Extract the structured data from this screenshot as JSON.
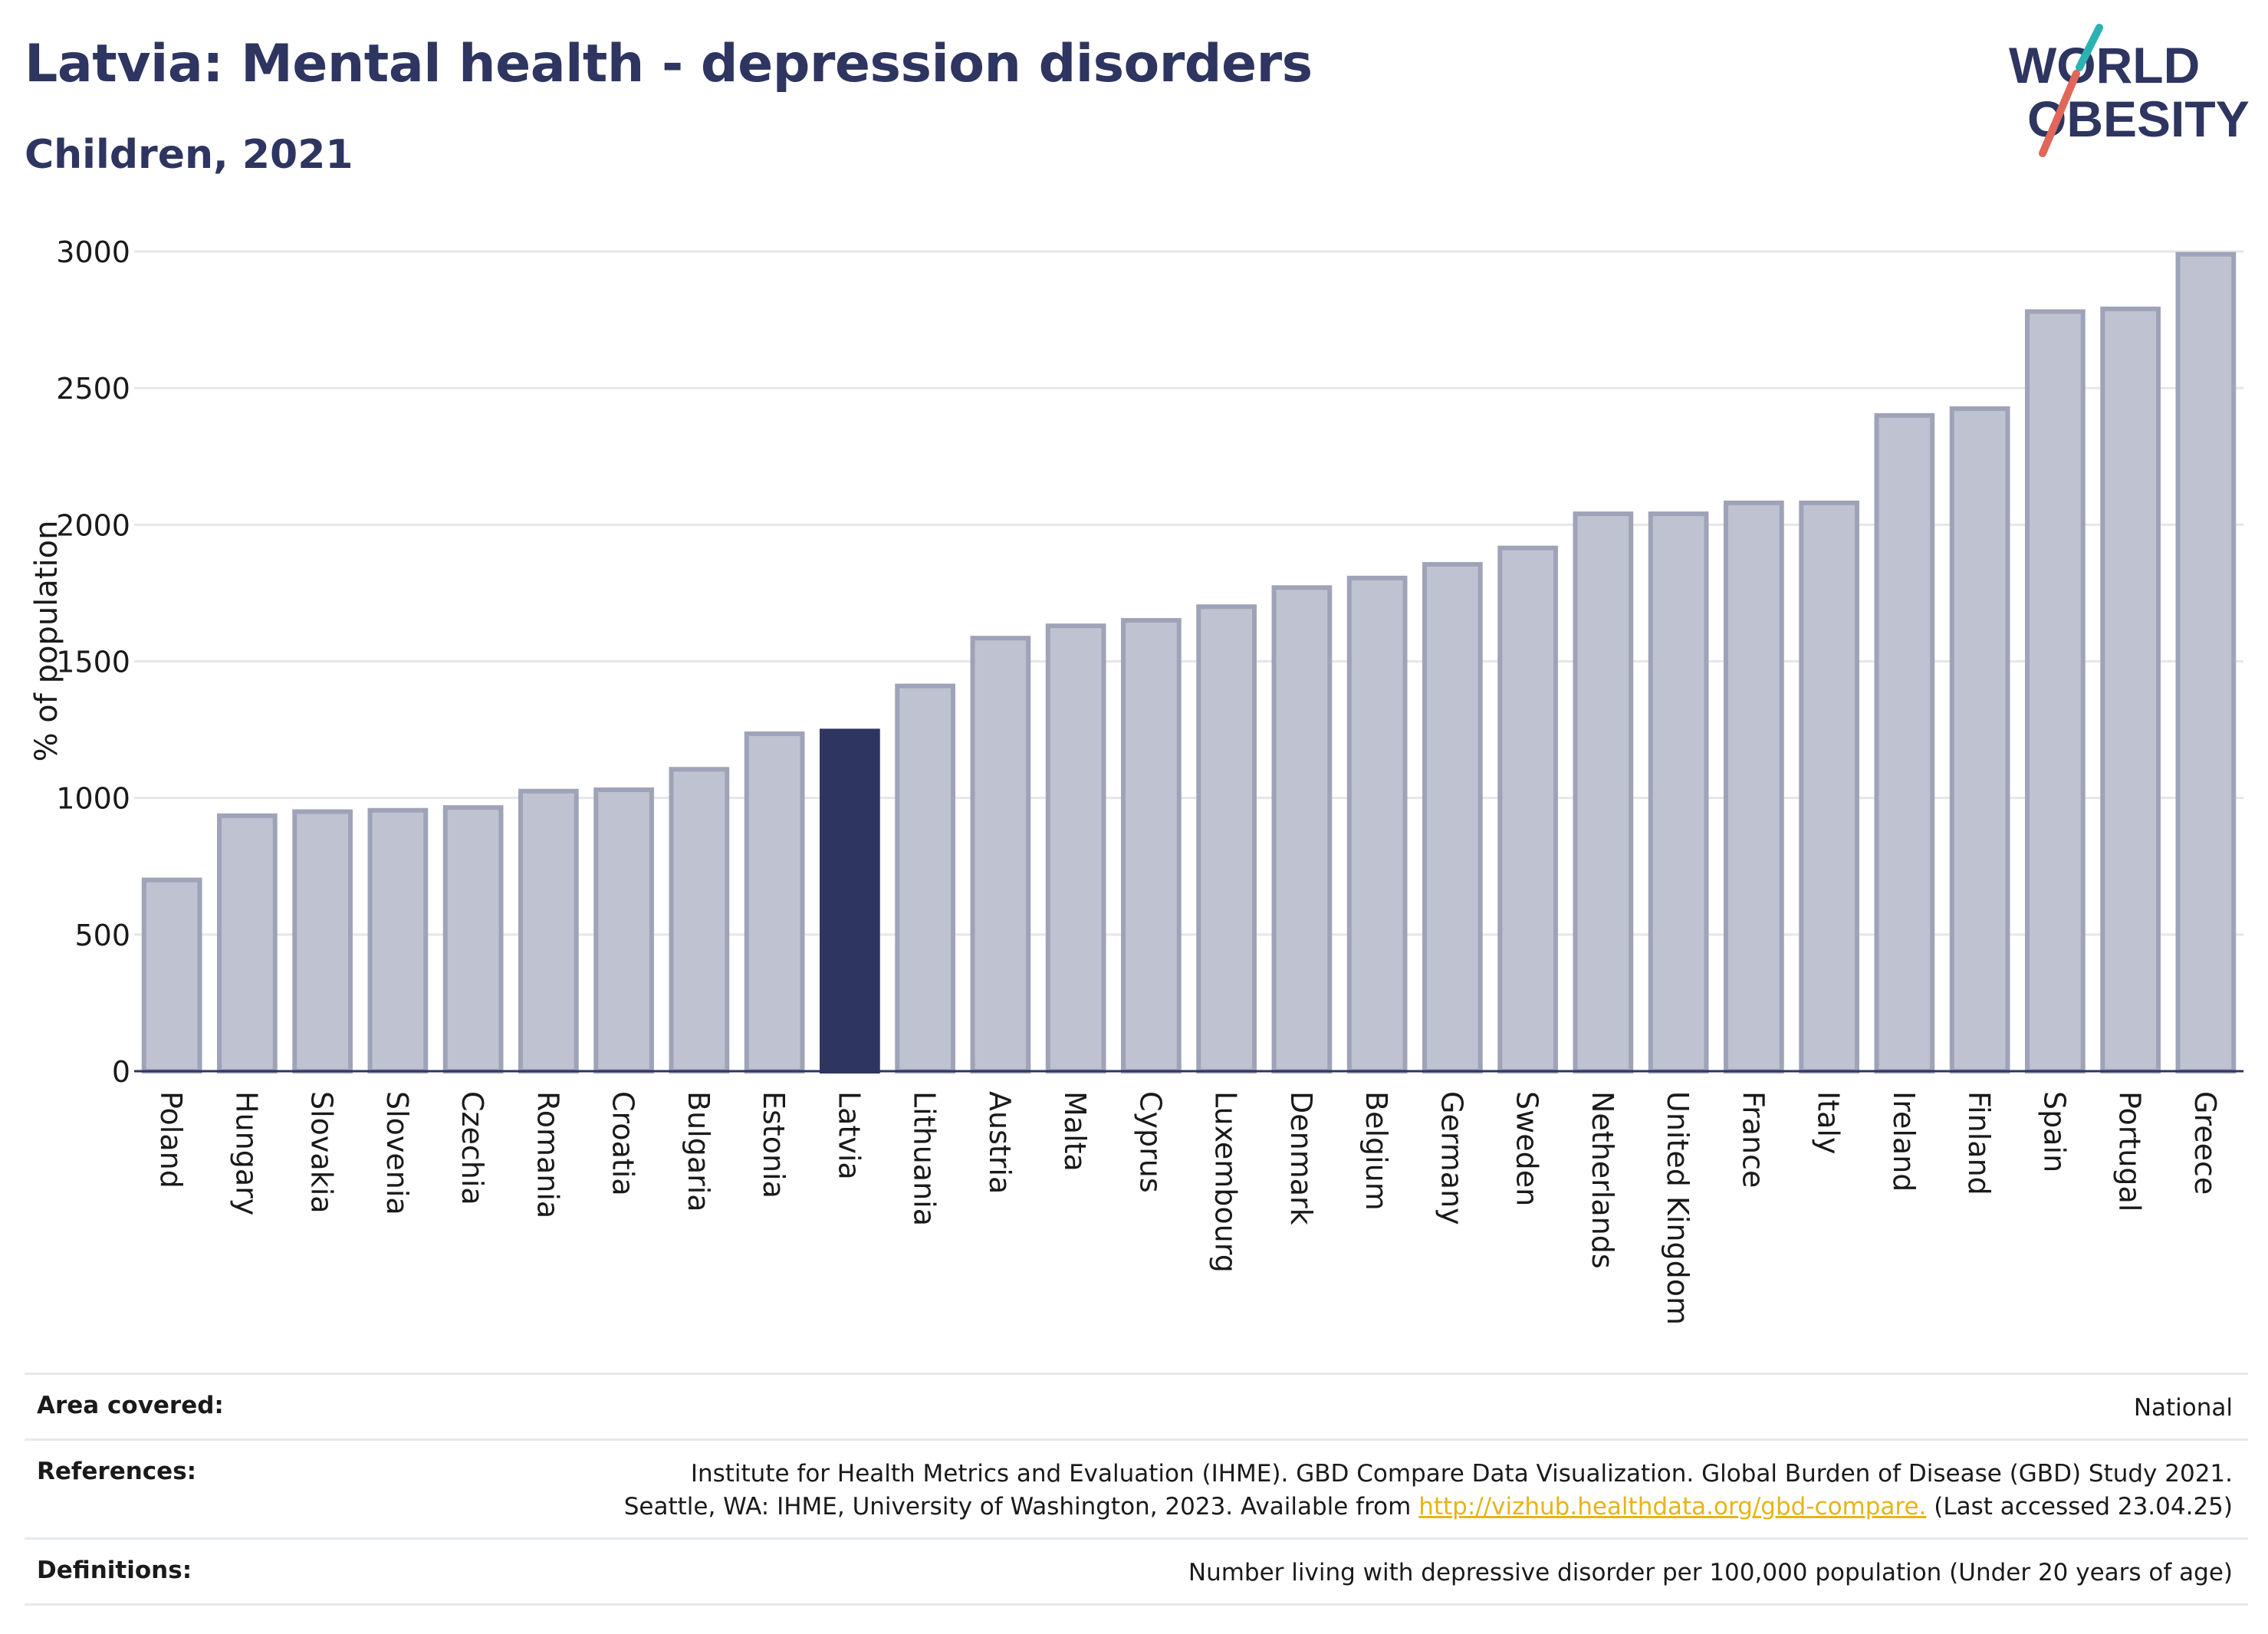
{
  "title": "Latvia: Mental health - depression disorders",
  "subtitle": "Children, 2021",
  "logo": {
    "line1": "WORLD",
    "line2": "OBESITY",
    "accent_teal": "#2bb3b1",
    "accent_coral": "#e0675a"
  },
  "colors": {
    "bar": "#bfc2d0",
    "bar_stroke": "#9ea3b8",
    "highlight": "#2d3560",
    "grid": "#e6e6e6",
    "axis": "#2d3560"
  },
  "chart_data": {
    "type": "bar",
    "ylabel": "% of population",
    "ylim": [
      0,
      3000
    ],
    "yticks": [
      0,
      500,
      1000,
      1500,
      2000,
      2500,
      3000
    ],
    "grid": true,
    "highlight": "Latvia",
    "categories": [
      "Poland",
      "Hungary",
      "Slovakia",
      "Slovenia",
      "Czechia",
      "Romania",
      "Croatia",
      "Bulgaria",
      "Estonia",
      "Latvia",
      "Lithuania",
      "Austria",
      "Malta",
      "Cyprus",
      "Luxembourg",
      "Denmark",
      "Belgium",
      "Germany",
      "Sweden",
      "Netherlands",
      "United Kingdom",
      "France",
      "Italy",
      "Ireland",
      "Finland",
      "Spain",
      "Portugal",
      "Greece"
    ],
    "values": [
      700,
      935,
      950,
      955,
      965,
      1025,
      1030,
      1105,
      1235,
      1245,
      1410,
      1585,
      1630,
      1650,
      1700,
      1770,
      1805,
      1855,
      1915,
      2040,
      2040,
      2080,
      2080,
      2400,
      2425,
      2780,
      2790,
      2990
    ]
  },
  "footer": {
    "area_label": "Area covered:",
    "area_value": "National",
    "references_label": "References:",
    "references_line1": "Institute for Health Metrics and Evaluation (IHME). GBD Compare Data Visualization. Global Burden of Disease (GBD) Study 2021.",
    "references_line2_prefix": "Seattle, WA: IHME, University of Washington, 2023. Available from ",
    "references_link": "http://vizhub.healthdata.org/gbd-compare.",
    "references_line2_suffix": " (Last accessed 23.04.25)",
    "definitions_label": "Definitions:",
    "definitions_value": "Number living with depressive disorder per 100,000 population (Under 20 years of age)"
  }
}
